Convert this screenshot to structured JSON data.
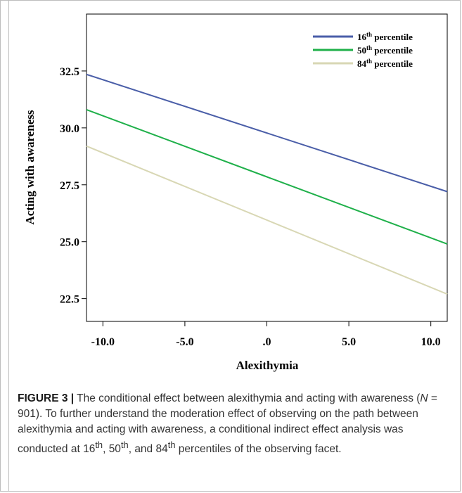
{
  "chart_data": {
    "type": "line",
    "xlabel": "Alexithymia",
    "ylabel": "Acting with awareness",
    "xlim": [
      -11.0,
      11.0
    ],
    "ylim": [
      21.5,
      35.0
    ],
    "x_ticks": [
      -10.0,
      -5.0,
      0.0,
      5.0,
      10.0
    ],
    "x_tick_labels": [
      "-10.0",
      "-5.0",
      ".0",
      "5.0",
      "10.0"
    ],
    "y_ticks": [
      22.5,
      25.0,
      27.5,
      30.0,
      32.5
    ],
    "y_tick_labels": [
      "22.5",
      "25.0",
      "27.5",
      "30.0",
      "32.5"
    ],
    "grid": false,
    "legend_position": "top-right",
    "series": [
      {
        "name": "16th percentile",
        "name_base": "16",
        "name_sup": "th",
        "name_rest": " percentile",
        "color": "#4a5ea8",
        "x": [
          -11.0,
          11.0
        ],
        "y": [
          32.35,
          27.2
        ]
      },
      {
        "name": "50th percentile",
        "name_base": "50",
        "name_sup": "th",
        "name_rest": " percentile",
        "color": "#1fb04a",
        "x": [
          -11.0,
          11.0
        ],
        "y": [
          30.8,
          24.9
        ]
      },
      {
        "name": "84th percentile",
        "name_base": "84",
        "name_sup": "th",
        "name_rest": " percentile",
        "color": "#d8d7b4",
        "x": [
          -11.0,
          11.0
        ],
        "y": [
          29.2,
          22.7
        ]
      }
    ]
  },
  "caption": {
    "label": "FIGURE 3 |",
    "text_1": " The conditional effect between alexithymia and acting with awareness (",
    "n_symbol": "N",
    "text_2": " = 901). To further understand the moderation effect of observing on the path between alexithymia and acting with awareness, a conditional indirect effect analysis was conducted at 16",
    "sup_1": "th",
    "text_3": ", 50",
    "sup_2": "th",
    "text_4": ", and 84",
    "sup_3": "th",
    "text_5": " percentiles of the observing facet."
  }
}
